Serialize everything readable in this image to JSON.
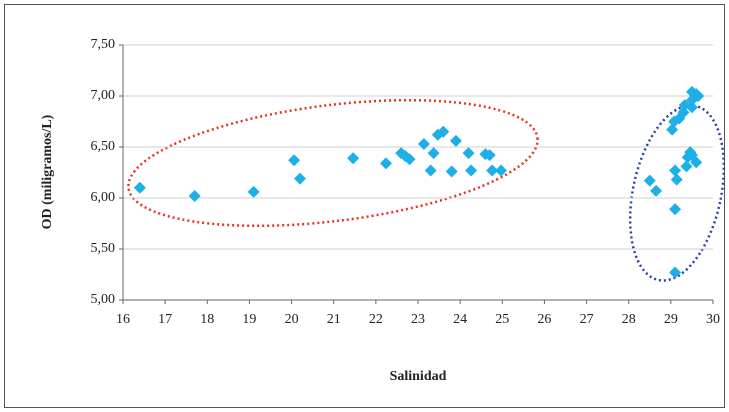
{
  "chart_data": {
    "type": "scatter",
    "x_label": "Salinidad",
    "y_label": "OD (miligramos/L)",
    "xlim": [
      16,
      30
    ],
    "xticks": [
      16,
      17,
      18,
      19,
      20,
      21,
      22,
      23,
      24,
      25,
      26,
      27,
      28,
      29,
      30
    ],
    "ylim": [
      5,
      7.5
    ],
    "yticks": [
      {
        "value": 5,
        "label": "5,00"
      },
      {
        "value": 5.5,
        "label": "5,50"
      },
      {
        "value": 6,
        "label": "6,00"
      },
      {
        "value": 6.5,
        "label": "6,50"
      },
      {
        "value": 7,
        "label": "7,00"
      },
      {
        "value": 7.5,
        "label": "7,50"
      }
    ],
    "grid": true,
    "series": [
      {
        "color": "#1eaee8",
        "x": [
          16.4,
          17.7,
          19.1,
          20.06,
          20.2,
          21.46,
          22.24,
          22.6,
          22.7,
          22.8,
          23.14,
          23.3,
          23.37,
          23.47,
          23.6,
          23.8,
          23.9,
          24.2,
          24.26,
          24.6,
          24.7,
          24.76,
          24.97,
          28.5,
          28.65,
          29.03,
          29.08,
          29.1,
          29.1,
          29.14,
          29.1,
          29.2,
          29.3,
          29.33,
          29.37,
          29.4,
          29.46,
          29.5,
          29.5,
          29.5,
          29.6,
          29.6,
          29.5,
          29.65
        ],
        "values": [
          6.1,
          6.02,
          6.06,
          6.37,
          6.19,
          6.39,
          6.34,
          6.44,
          6.41,
          6.38,
          6.53,
          6.27,
          6.44,
          6.62,
          6.65,
          6.26,
          6.56,
          6.44,
          6.27,
          6.43,
          6.42,
          6.27,
          6.27,
          6.17,
          6.07,
          6.67,
          6.75,
          5.89,
          6.27,
          6.18,
          5.27,
          6.78,
          6.84,
          6.91,
          6.31,
          6.4,
          6.45,
          6.42,
          6.96,
          7.04,
          6.35,
          7.02,
          6.89,
          7.0
        ]
      }
    ]
  }
}
